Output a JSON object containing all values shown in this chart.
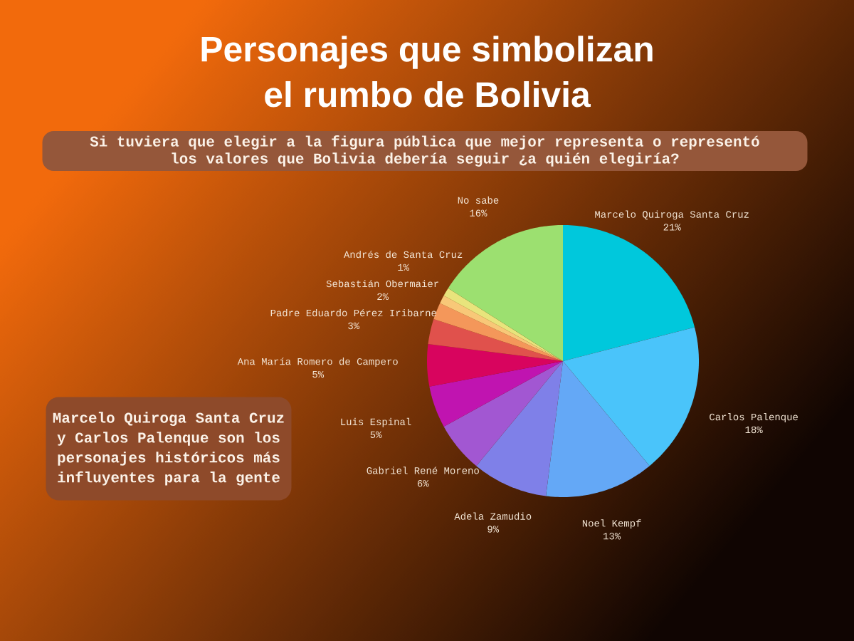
{
  "chart_data": {
    "type": "pie",
    "title": "Personajes que simbolizan el rumbo de Bolivia",
    "subtitle": "Si tuviera que elegir a la figura pública que mejor representa o representó los valores que Bolivia debería seguir ¿a quién elegiría?",
    "categories": [
      "Marcelo Quiroga Santa Cruz",
      "Carlos Palenque",
      "Noel Kempf",
      "Adela Zamudio",
      "Gabriel René Moreno",
      "Luis Espinal",
      "Ana María Romero de Campero",
      "Padre Eduardo Pérez Iribarne",
      "Sebastián Obermaier",
      null,
      "Andrés de Santa Cruz",
      "No sabe"
    ],
    "values": [
      21,
      18,
      13,
      9,
      6,
      5,
      5,
      3,
      2,
      1,
      1,
      16
    ],
    "value_labels": [
      "21%",
      "18%",
      "13%",
      "9%",
      "6%",
      "5%",
      "5%",
      "3%",
      "2%",
      null,
      "1%",
      "16%"
    ],
    "colors": [
      "#00c8dc",
      "#4ac4fa",
      "#64a8f6",
      "#7f80e8",
      "#a257d2",
      "#c014b0",
      "#d8045e",
      "#e0514c",
      "#f4975a",
      "#f8c878",
      "#e8e47c",
      "#9ce070"
    ],
    "annotations": [
      "Marcelo Quiroga Santa Cruz y Carlos Palenque son los personajes históricos más influyentes para la gente"
    ]
  }
}
